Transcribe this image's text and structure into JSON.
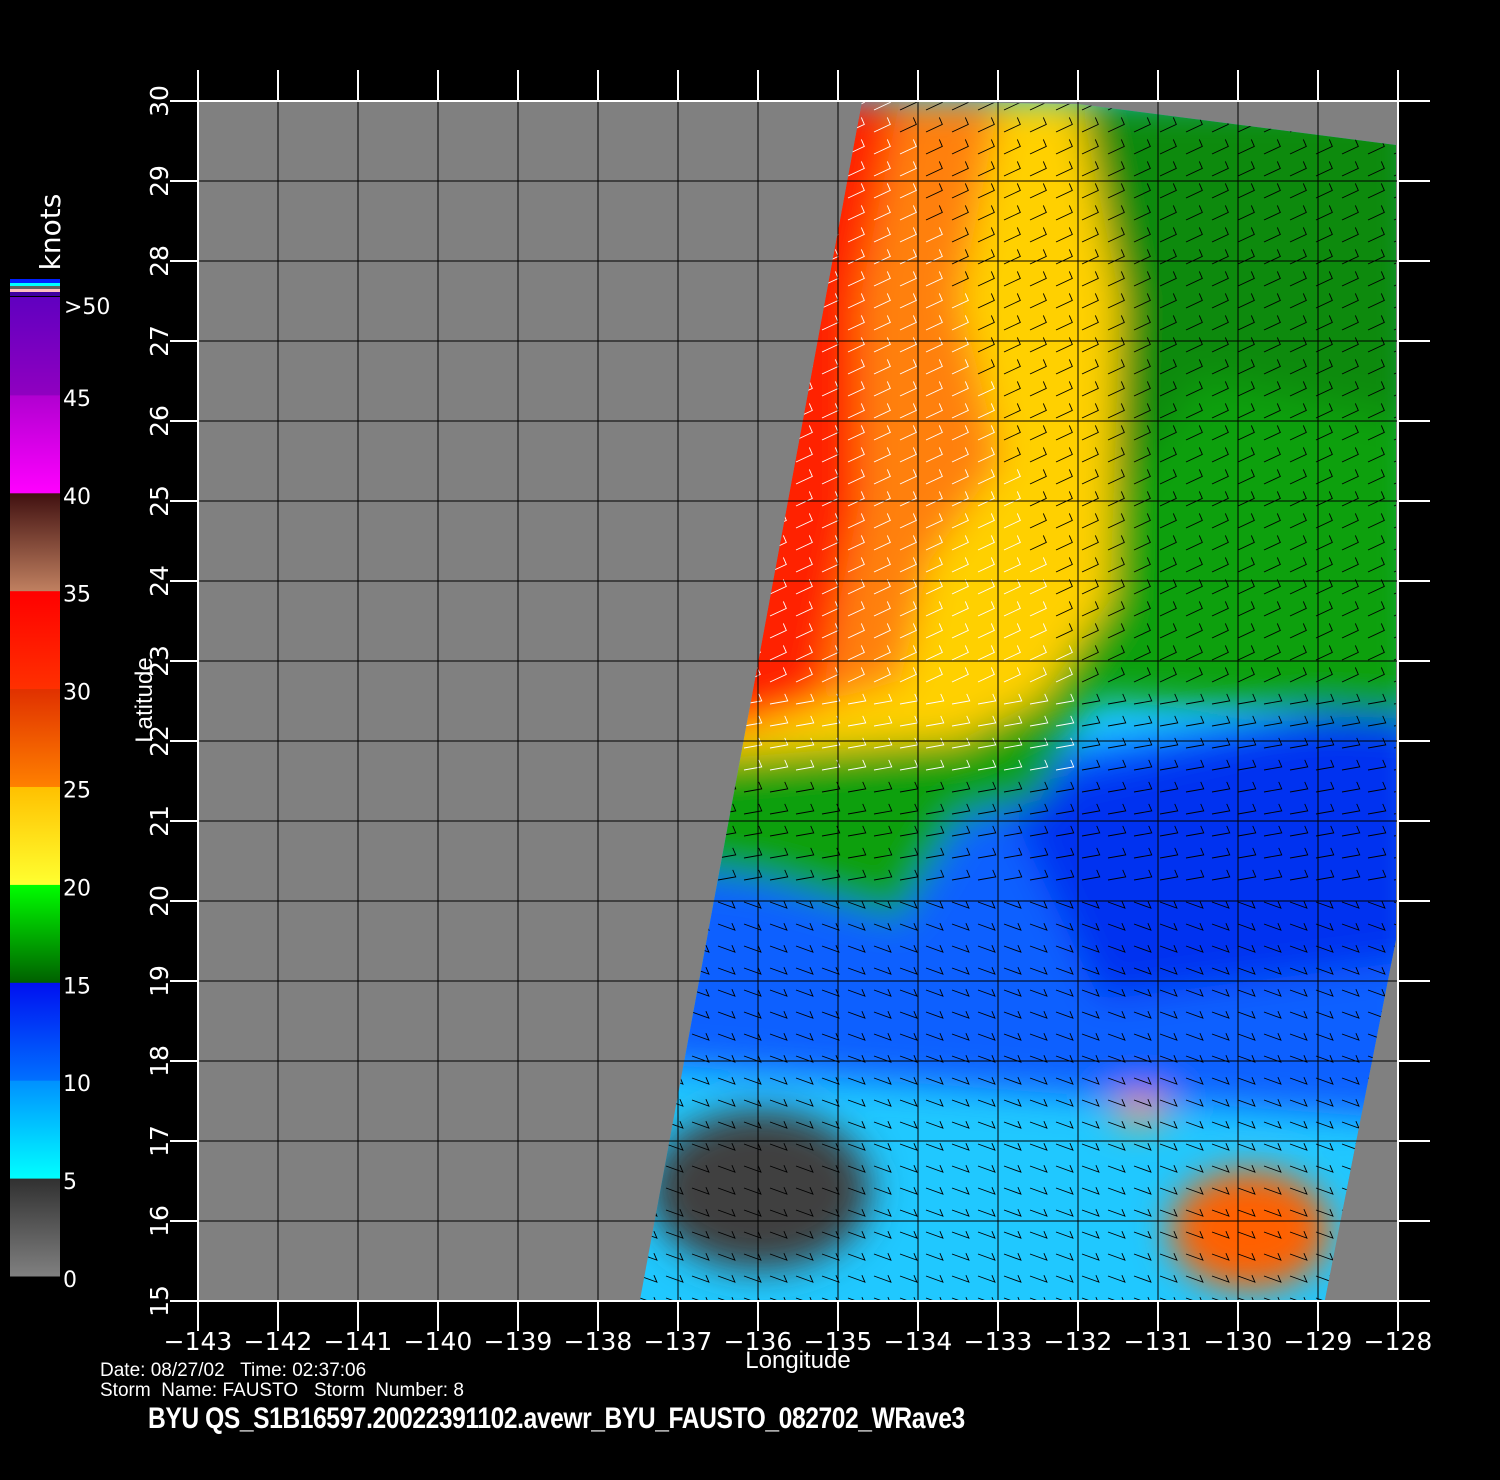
{
  "map": {
    "xlabel": "Longitude",
    "ylabel": "Latitude",
    "lon_range": [
      -143,
      -128
    ],
    "lat_range": [
      15,
      30
    ],
    "lon_ticks": [
      "−143",
      "−142",
      "−141",
      "−140",
      "−139",
      "−138",
      "−137",
      "−136",
      "−135",
      "−134",
      "−133",
      "−132",
      "−131",
      "−130",
      "−129",
      "−128"
    ],
    "lat_ticks": [
      "15",
      "16",
      "17",
      "18",
      "19",
      "20",
      "21",
      "22",
      "23",
      "24",
      "25",
      "26",
      "27",
      "28",
      "29",
      "30"
    ],
    "no_data_color": "#808080",
    "grid": true
  },
  "colorbar": {
    "unit": "knots",
    "labels": [
      "0",
      "5",
      "10",
      "15",
      "20",
      "25",
      "30",
      "35",
      "40",
      "45",
      ">50"
    ],
    "bins": [
      {
        "from": 0,
        "to": 5,
        "colors": [
          "#808080",
          "#303030"
        ]
      },
      {
        "from": 5,
        "to": 10,
        "colors": [
          "#00ffff",
          "#0090ff"
        ]
      },
      {
        "from": 10,
        "to": 15,
        "colors": [
          "#0070ff",
          "#0010f0"
        ]
      },
      {
        "from": 15,
        "to": 20,
        "colors": [
          "#006000",
          "#00ff00"
        ]
      },
      {
        "from": 20,
        "to": 25,
        "colors": [
          "#ffff30",
          "#ffc000"
        ]
      },
      {
        "from": 25,
        "to": 30,
        "colors": [
          "#ff8000",
          "#e03000"
        ]
      },
      {
        "from": 30,
        "to": 35,
        "colors": [
          "#ff3000",
          "#ff0000"
        ]
      },
      {
        "from": 35,
        "to": 40,
        "colors": [
          "#c08060",
          "#401010"
        ]
      },
      {
        "from": 40,
        "to": 45,
        "colors": [
          "#ff00ff",
          "#b000d0"
        ]
      },
      {
        "from": 45,
        "to": 50,
        "colors": [
          "#9000c0",
          "#6000c0"
        ]
      }
    ]
  },
  "info": {
    "date_line": "Date: 08/27/02   Time: 02:37:06",
    "storm_line": "Storm  Name: FAUSTO   Storm  Number: 8",
    "filename": "BYU  QS_S1B16597.20022391102.avewr_BYU_FAUSTO_082702_WRave3"
  }
}
